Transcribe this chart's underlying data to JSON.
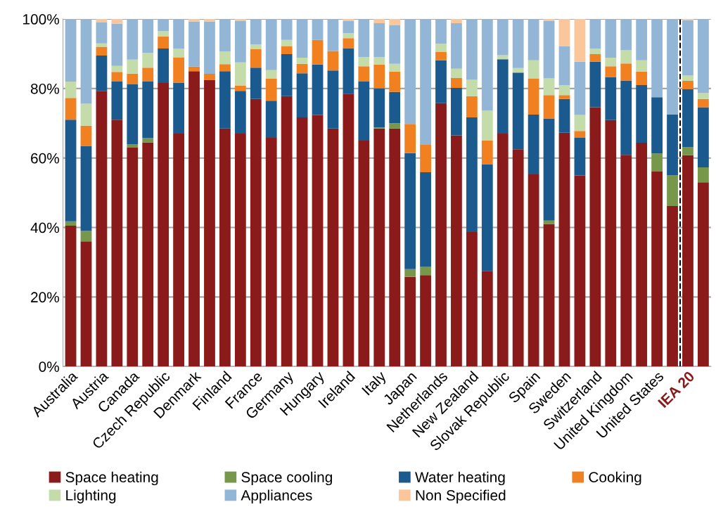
{
  "chart_data": {
    "type": "bar",
    "stacked": true,
    "categories": [
      "Australia",
      null,
      "Austria",
      null,
      "Canada",
      null,
      "Czech Republic",
      null,
      "Denmark",
      null,
      "Finland",
      null,
      "France",
      null,
      "Germany",
      null,
      "Hungary",
      null,
      "Ireland",
      null,
      "Italy",
      null,
      "Japan",
      null,
      "Netherlands",
      null,
      "New Zealand",
      null,
      "Slovak Republic",
      null,
      "Spain",
      null,
      "Sweden",
      null,
      "Switzerland",
      null,
      "United Kingdom",
      null,
      "United States",
      null,
      "IEA 20",
      null
    ],
    "series": [
      {
        "name": "Space heating",
        "color": "#8b1a1a",
        "values": [
          40.5,
          36,
          79.3,
          71,
          63,
          64.5,
          81.6,
          67,
          85,
          82.5,
          68.5,
          67,
          77,
          65.8,
          77.8,
          71.7,
          72.4,
          68.5,
          78.5,
          65,
          68.5,
          68.5,
          25.8,
          26.3,
          75.8,
          66.5,
          38.7,
          27.5,
          67,
          62.5,
          55.3,
          41,
          67.3,
          55,
          74.6,
          70.9,
          60.9,
          64.4,
          56.1,
          46.2,
          60.8,
          53
        ]
      },
      {
        "name": "Space cooling",
        "color": "#77984a",
        "values": [
          1.3,
          3,
          null,
          null,
          1,
          1.2,
          null,
          null,
          null,
          null,
          null,
          null,
          null,
          null,
          null,
          null,
          null,
          null,
          null,
          null,
          0.3,
          1.5,
          2.2,
          2.4,
          null,
          null,
          null,
          null,
          null,
          null,
          null,
          1,
          null,
          null,
          null,
          null,
          null,
          null,
          5.2,
          8.8,
          2.4,
          4.3
        ]
      },
      {
        "name": "Water heating",
        "color": "#1a5a8e",
        "values": [
          29.2,
          24.5,
          10.2,
          11,
          17.2,
          16.3,
          9.9,
          14.7,
          null,
          null,
          16.5,
          12.3,
          9,
          10.7,
          12.1,
          12.7,
          14.5,
          16.7,
          13.1,
          17,
          11.3,
          9,
          33.4,
          27.2,
          12.3,
          13.7,
          33,
          30.7,
          21.4,
          22.1,
          17.2,
          29.4,
          9.7,
          10.8,
          13.1,
          12.4,
          21.4,
          16.6,
          16.2,
          17.5,
          16.6,
          17.3
        ]
      },
      {
        "name": "Cooking",
        "color": "#f08020",
        "values": [
          6.3,
          5.8,
          2.5,
          2.8,
          3.1,
          4,
          3.5,
          7.3,
          1.3,
          1.7,
          2,
          1.5,
          5.3,
          6.3,
          2.3,
          2.7,
          7.1,
          5.6,
          2.9,
          4.4,
          6.8,
          5.9,
          8.4,
          7.9,
          2.4,
          2.8,
          6.1,
          6.8,
          null,
          null,
          10.4,
          6.7,
          1.1,
          2,
          2.2,
          3.1,
          4.9,
          3.9,
          null,
          null,
          2.4,
          2.4
        ]
      },
      {
        "name": "Lighting",
        "color": "#c4dcaa",
        "values": [
          4.7,
          6.3,
          1,
          1.7,
          4,
          4.3,
          1.5,
          2.5,
          null,
          null,
          3.7,
          6.7,
          1.4,
          2.5,
          1.8,
          1.8,
          null,
          null,
          1.4,
          2.7,
          2.2,
          2.2,
          null,
          null,
          2.4,
          2.7,
          4.7,
          8.7,
          1.2,
          1.3,
          5.2,
          4.8,
          2.9,
          4.6,
          1.6,
          2.5,
          3.8,
          3.2,
          null,
          null,
          1.5,
          1.7
        ]
      },
      {
        "name": "Appliances",
        "color": "#93b6d6",
        "values": [
          18,
          24.4,
          6,
          12.2,
          11.7,
          9.7,
          3.5,
          8.5,
          13,
          15.1,
          9.3,
          11.9,
          7.3,
          14.7,
          6,
          11.1,
          6,
          9.2,
          3.5,
          10.9,
          9.7,
          11.1,
          30.2,
          36.2,
          7.1,
          13.1,
          17.5,
          26.3,
          10.4,
          14.1,
          11.9,
          16.6,
          11.1,
          15.3,
          8.5,
          11.1,
          9,
          11.9,
          22.5,
          27.5,
          16,
          21.3
        ]
      },
      {
        "name": "Non Specified",
        "color": "#fbc79a",
        "values": [
          null,
          null,
          1,
          1.3,
          null,
          null,
          null,
          null,
          0.7,
          0.7,
          null,
          0.6,
          null,
          null,
          null,
          null,
          null,
          null,
          0.6,
          null,
          1.2,
          1.8,
          null,
          null,
          null,
          1.2,
          null,
          null,
          null,
          null,
          null,
          0.5,
          7.9,
          12.3,
          null,
          null,
          null,
          null,
          null,
          null,
          0.3,
          null
        ]
      }
    ],
    "ylim": [
      0,
      100
    ],
    "yticks": [
      {
        "value": 0,
        "label": "0%"
      },
      {
        "value": 20,
        "label": "20%"
      },
      {
        "value": 40,
        "label": "40%"
      },
      {
        "value": 60,
        "label": "60%"
      },
      {
        "value": 80,
        "label": "80%"
      },
      {
        "value": 100,
        "label": "100%"
      }
    ],
    "grid": "y",
    "legend": "bottom"
  }
}
